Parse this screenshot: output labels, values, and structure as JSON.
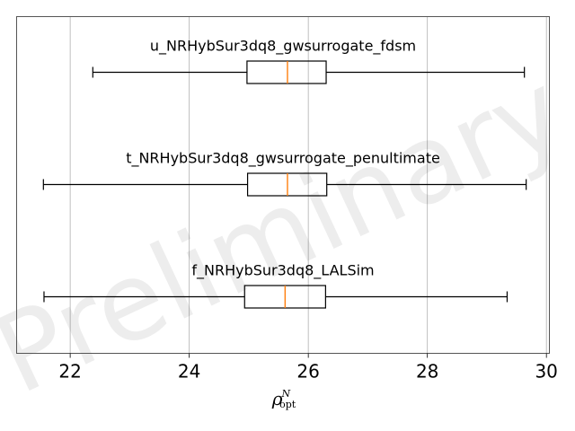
{
  "chart_data": {
    "type": "boxplot",
    "orientation": "horizontal",
    "watermark": "Preliminary",
    "xlabel": {
      "symbol": "ρ",
      "superscript": "N",
      "subscript": "opt"
    },
    "xlim": [
      21.1,
      30.05
    ],
    "xticks": [
      22,
      24,
      26,
      28,
      30
    ],
    "xtick_labels": [
      "22",
      "24",
      "26",
      "28",
      "30"
    ],
    "grid": "vertical",
    "colors": {
      "box": "#000000",
      "median": "#ff7f0e",
      "grid": "#b0b0b0",
      "frame": "#555555"
    },
    "boxes": [
      {
        "label": "u_NRHybSur3dq8_gwsurrogate_fdsm",
        "whisker_low": 22.38,
        "q1": 24.97,
        "median": 25.65,
        "q3": 26.3,
        "whisker_high": 29.63
      },
      {
        "label": "t_NRHybSur3dq8_gwsurrogate_penultimate",
        "whisker_low": 21.55,
        "q1": 24.98,
        "median": 25.65,
        "q3": 26.31,
        "whisker_high": 29.66
      },
      {
        "label": "f_NRHybSur3dq8_LALSim",
        "whisker_low": 21.56,
        "q1": 24.93,
        "median": 25.61,
        "q3": 26.29,
        "whisker_high": 29.34
      }
    ]
  }
}
